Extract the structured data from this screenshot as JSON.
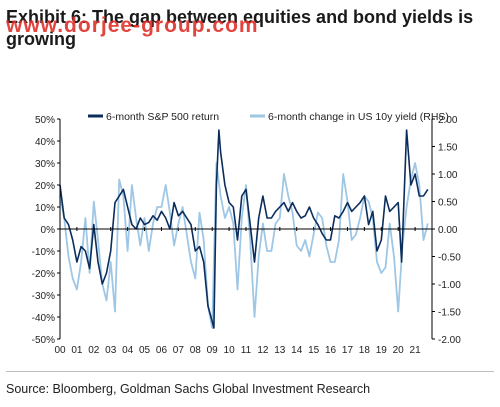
{
  "title": "Exhibit 6: The gap between equities and bond yields is growing",
  "watermark": "www.dorjee-group.com",
  "source": "Source: Bloomberg, Goldman Sachs Global Investment Research",
  "colors": {
    "sp500": "#0b2d5c",
    "yield": "#9ec7e6",
    "axis": "#000000",
    "text": "#222222"
  },
  "chart_data": {
    "type": "line",
    "title": "",
    "xlabel": "",
    "ylabel": "",
    "x_tick_labels": [
      "00",
      "01",
      "02",
      "03",
      "04",
      "05",
      "06",
      "07",
      "08",
      "09",
      "10",
      "11",
      "12",
      "13",
      "14",
      "15",
      "16",
      "17",
      "18",
      "19",
      "20",
      "21"
    ],
    "xlim": [
      2000,
      2022
    ],
    "left_axis": {
      "ylim": [
        -0.5,
        0.5
      ],
      "ticks": [
        "-50%",
        "-40%",
        "-30%",
        "-20%",
        "-10%",
        "0%",
        "10%",
        "20%",
        "30%",
        "40%",
        "50%"
      ]
    },
    "right_axis": {
      "ylim": [
        -2.0,
        2.0
      ],
      "ticks": [
        "-2.00",
        "-1.50",
        "-1.00",
        "-0.50",
        "0.00",
        "0.50",
        "1.00",
        "1.50",
        "2.00"
      ]
    },
    "legend_position": "top",
    "series": [
      {
        "name": "6-month S&P 500 return",
        "axis": "left",
        "x": [
          2000.0,
          2000.25,
          2000.5,
          2000.75,
          2001.0,
          2001.25,
          2001.5,
          2001.75,
          2002.0,
          2002.25,
          2002.5,
          2002.75,
          2003.0,
          2003.25,
          2003.5,
          2003.75,
          2004.0,
          2004.25,
          2004.5,
          2004.75,
          2005.0,
          2005.25,
          2005.5,
          2005.75,
          2006.0,
          2006.25,
          2006.5,
          2006.75,
          2007.0,
          2007.25,
          2007.5,
          2007.75,
          2008.0,
          2008.25,
          2008.5,
          2008.75,
          2009.0,
          2009.1,
          2009.25,
          2009.4,
          2009.5,
          2009.75,
          2010.0,
          2010.25,
          2010.5,
          2010.75,
          2011.0,
          2011.25,
          2011.5,
          2011.75,
          2012.0,
          2012.25,
          2012.5,
          2012.75,
          2013.0,
          2013.25,
          2013.5,
          2013.75,
          2014.0,
          2014.25,
          2014.5,
          2014.75,
          2015.0,
          2015.25,
          2015.5,
          2015.75,
          2016.0,
          2016.25,
          2016.5,
          2016.75,
          2017.0,
          2017.25,
          2017.5,
          2017.75,
          2018.0,
          2018.25,
          2018.5,
          2018.75,
          2019.0,
          2019.25,
          2019.5,
          2019.75,
          2020.0,
          2020.2,
          2020.3,
          2020.5,
          2020.75,
          2021.0,
          2021.25,
          2021.5,
          2021.75
        ],
        "values": [
          0.2,
          0.05,
          0.02,
          -0.05,
          -0.15,
          -0.08,
          -0.1,
          -0.18,
          0.02,
          -0.15,
          -0.25,
          -0.2,
          -0.1,
          0.12,
          0.15,
          0.18,
          0.1,
          0.02,
          0.0,
          0.05,
          0.02,
          0.03,
          0.06,
          0.04,
          0.08,
          0.05,
          0.0,
          0.12,
          0.06,
          0.08,
          0.05,
          0.02,
          -0.1,
          -0.08,
          -0.15,
          -0.35,
          -0.42,
          -0.45,
          0.2,
          0.45,
          0.35,
          0.2,
          0.12,
          0.1,
          -0.05,
          0.15,
          0.18,
          0.02,
          -0.15,
          0.05,
          0.15,
          0.05,
          0.05,
          0.08,
          0.1,
          0.12,
          0.08,
          0.12,
          0.08,
          0.05,
          0.06,
          0.1,
          0.05,
          0.02,
          -0.02,
          -0.05,
          -0.05,
          0.06,
          0.05,
          0.08,
          0.12,
          0.08,
          0.1,
          0.12,
          0.15,
          0.02,
          0.08,
          -0.1,
          -0.05,
          0.15,
          0.08,
          0.1,
          0.12,
          -0.15,
          0.05,
          0.45,
          0.2,
          0.25,
          0.15,
          0.15,
          0.18
        ]
      },
      {
        "name": "6-month change in US 10y yield (RHS)",
        "axis": "right",
        "x": [
          2000.0,
          2000.25,
          2000.5,
          2000.75,
          2001.0,
          2001.25,
          2001.5,
          2001.75,
          2002.0,
          2002.25,
          2002.5,
          2002.75,
          2003.0,
          2003.25,
          2003.5,
          2003.75,
          2004.0,
          2004.25,
          2004.5,
          2004.75,
          2005.0,
          2005.25,
          2005.5,
          2005.75,
          2006.0,
          2006.25,
          2006.5,
          2006.75,
          2007.0,
          2007.25,
          2007.5,
          2007.75,
          2008.0,
          2008.25,
          2008.5,
          2008.75,
          2009.0,
          2009.25,
          2009.5,
          2009.75,
          2010.0,
          2010.25,
          2010.5,
          2010.75,
          2011.0,
          2011.25,
          2011.5,
          2011.75,
          2012.0,
          2012.25,
          2012.5,
          2012.75,
          2013.0,
          2013.25,
          2013.5,
          2013.75,
          2014.0,
          2014.25,
          2014.5,
          2014.75,
          2015.0,
          2015.25,
          2015.5,
          2015.75,
          2016.0,
          2016.25,
          2016.5,
          2016.75,
          2017.0,
          2017.25,
          2017.5,
          2017.75,
          2018.0,
          2018.25,
          2018.5,
          2018.75,
          2019.0,
          2019.25,
          2019.5,
          2019.75,
          2020.0,
          2020.25,
          2020.5,
          2020.75,
          2021.0,
          2021.25,
          2021.5,
          2021.75
        ],
        "values": [
          0.6,
          0.2,
          -0.5,
          -0.9,
          -1.1,
          -0.6,
          0.2,
          -0.8,
          0.5,
          -0.2,
          -1.0,
          -1.3,
          -0.6,
          -1.5,
          0.9,
          0.6,
          -0.4,
          0.8,
          0.2,
          -0.3,
          0.2,
          -0.4,
          0.1,
          0.4,
          0.4,
          0.8,
          0.3,
          -0.3,
          0.1,
          0.4,
          -0.1,
          -0.6,
          -0.9,
          0.3,
          -0.2,
          -1.4,
          -1.8,
          1.2,
          0.6,
          0.2,
          0.4,
          0.1,
          -1.1,
          0.2,
          0.8,
          -0.2,
          -1.6,
          -0.5,
          0.1,
          -0.4,
          -0.4,
          0.1,
          0.2,
          1.0,
          0.6,
          0.3,
          -0.3,
          -0.4,
          -0.2,
          -0.5,
          -0.1,
          0.3,
          0.2,
          -0.3,
          -0.6,
          -0.6,
          -0.2,
          1.0,
          0.5,
          -0.2,
          -0.1,
          0.2,
          0.6,
          0.5,
          0.2,
          -0.6,
          -0.8,
          -0.7,
          0.1,
          -0.5,
          -1.5,
          -0.3,
          0.4,
          0.9,
          1.2,
          0.8,
          -0.2,
          0.1
        ]
      }
    ]
  }
}
